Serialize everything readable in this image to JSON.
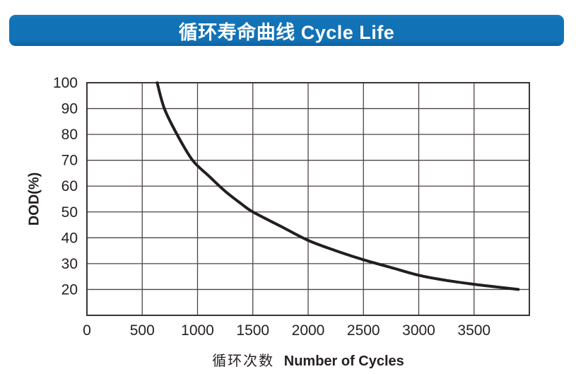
{
  "banner": {
    "title": "循环寿命曲线 Cycle Life",
    "bg_color": "#1272b6",
    "bg_color_light": "#1a7bbf",
    "bg_color_dark": "#0d5f9e",
    "text_color": "#ffffff"
  },
  "chart_data": {
    "type": "line",
    "title": "循环寿命曲线 Cycle Life",
    "xlabel_cn": "循环次数",
    "xlabel_en": "Number of Cycles",
    "ylabel": "DOD(%)",
    "xlim": [
      0,
      4000
    ],
    "ylim": [
      10,
      100
    ],
    "x_ticks": [
      0,
      500,
      1000,
      1500,
      2000,
      2500,
      3000,
      3500
    ],
    "y_ticks": [
      20,
      30,
      40,
      50,
      60,
      70,
      80,
      90,
      100
    ],
    "grid": true,
    "legend": false,
    "colors": {
      "curve": "#231f1e",
      "grid": "#4c4645",
      "frame": "#3a3433",
      "text": "#262120"
    },
    "series": [
      {
        "name": "Cycle Life (DOD vs Number of Cycles)",
        "points": [
          [
            635,
            100
          ],
          [
            700,
            90
          ],
          [
            815,
            80
          ],
          [
            955,
            70
          ],
          [
            1100,
            64
          ],
          [
            1250,
            58
          ],
          [
            1400,
            53
          ],
          [
            1500,
            50
          ],
          [
            1750,
            44.5
          ],
          [
            2000,
            39
          ],
          [
            2250,
            35
          ],
          [
            2500,
            31.5
          ],
          [
            2750,
            28.5
          ],
          [
            3000,
            25.5
          ],
          [
            3250,
            23.5
          ],
          [
            3500,
            22
          ],
          [
            3700,
            21
          ],
          [
            3900,
            20
          ]
        ]
      }
    ]
  }
}
